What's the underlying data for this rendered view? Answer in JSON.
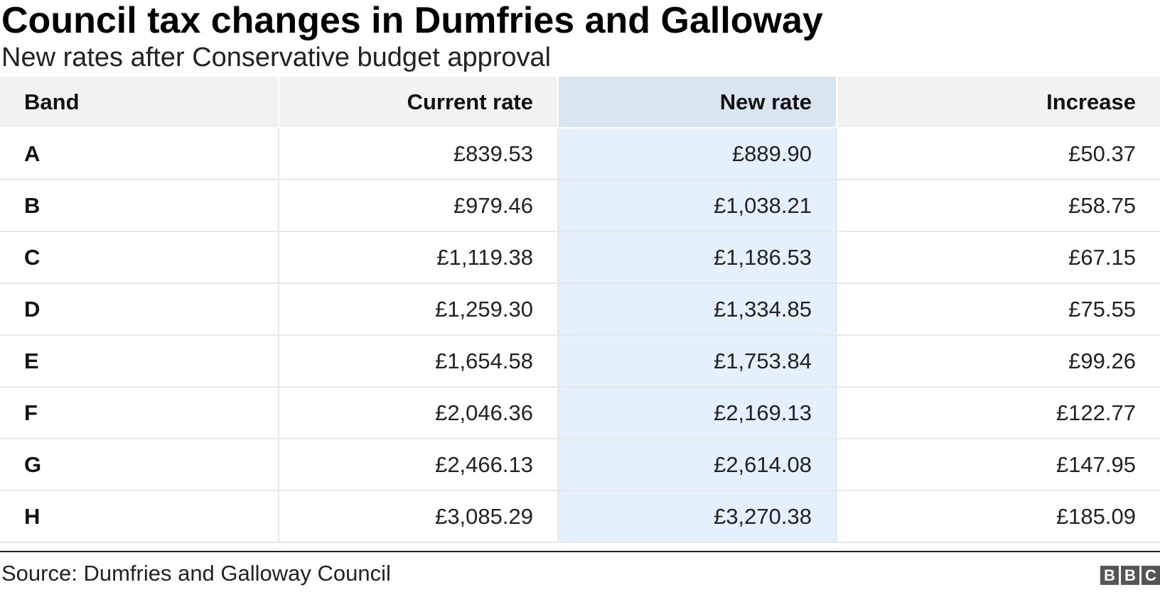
{
  "title": "Council tax changes in Dumfries and Galloway",
  "subtitle": "New rates after Conservative budget approval",
  "source": "Source: Dumfries and Galloway Council",
  "logo": [
    "B",
    "B",
    "C"
  ],
  "colors": {
    "header_bg": "#f2f2f2",
    "highlight_header_bg": "#d9e5f1",
    "highlight_column_bg": "#e4f1fc"
  },
  "chart_data": {
    "type": "table",
    "title": "Council tax changes in Dumfries and Galloway",
    "subtitle": "New rates after Conservative budget approval",
    "columns": [
      "Band",
      "Current rate",
      "New rate",
      "Increase"
    ],
    "highlighted_column": "New rate",
    "rows": [
      {
        "band": "A",
        "current": "£839.53",
        "new": "£889.90",
        "increase": "£50.37"
      },
      {
        "band": "B",
        "current": "£979.46",
        "new": "£1,038.21",
        "increase": "£58.75"
      },
      {
        "band": "C",
        "current": "£1,119.38",
        "new": "£1,186.53",
        "increase": "£67.15"
      },
      {
        "band": "D",
        "current": "£1,259.30",
        "new": "£1,334.85",
        "increase": "£75.55"
      },
      {
        "band": "E",
        "current": "£1,654.58",
        "new": "£1,753.84",
        "increase": "£99.26"
      },
      {
        "band": "F",
        "current": "£2,046.36",
        "new": "£2,169.13",
        "increase": "£122.77"
      },
      {
        "band": "G",
        "current": "£2,466.13",
        "new": "£2,614.08",
        "increase": "£147.95"
      },
      {
        "band": "H",
        "current": "£3,085.29",
        "new": "£3,270.38",
        "increase": "£185.09"
      }
    ]
  }
}
